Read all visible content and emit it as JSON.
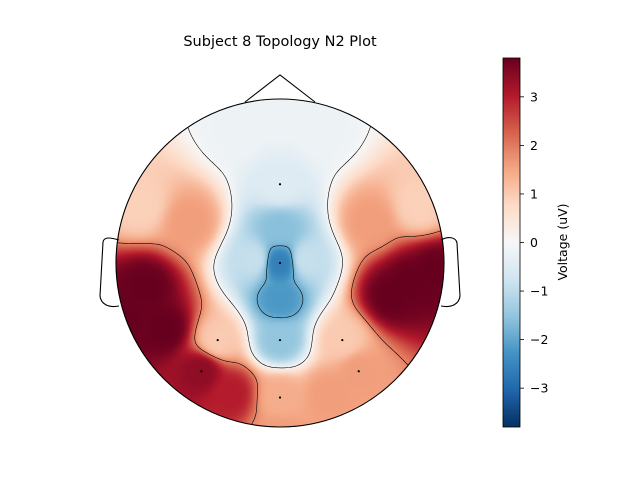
{
  "chart_data": {
    "type": "heatmap",
    "subtype": "eeg-topomap",
    "title": "Subject 8 Topology N2 Plot",
    "colorbar": {
      "label": "Voltage (uV)",
      "vmin": -3.8,
      "vmax": 3.8,
      "ticks": [
        3,
        2,
        1,
        0,
        -1,
        -2,
        -3
      ],
      "tick_labels": [
        "3",
        "2",
        "1",
        "0",
        "−1",
        "−2",
        "−3"
      ],
      "colormap": "RdBu_r"
    },
    "sensors": [
      {
        "id": "frontal-midline",
        "value": -0.5
      },
      {
        "id": "central-midline",
        "value": -2.6
      },
      {
        "id": "parietal-midline",
        "value": -1.5
      },
      {
        "id": "left-central",
        "value": 1.0
      },
      {
        "id": "right-central",
        "value": 1.0
      },
      {
        "id": "left-parietal",
        "value": 3.4
      },
      {
        "id": "right-parietal",
        "value": 1.6
      },
      {
        "id": "occipital-midline",
        "value": 1.4
      }
    ],
    "regions": {
      "left-temporal": 3.8,
      "right-temporal": 3.8,
      "frontal": -0.2,
      "occipital": 1.6
    },
    "contour_levels": [
      -1.9,
      0,
      1.9
    ],
    "colors": {
      "outline": "#000000",
      "sensor": "#000000"
    }
  }
}
